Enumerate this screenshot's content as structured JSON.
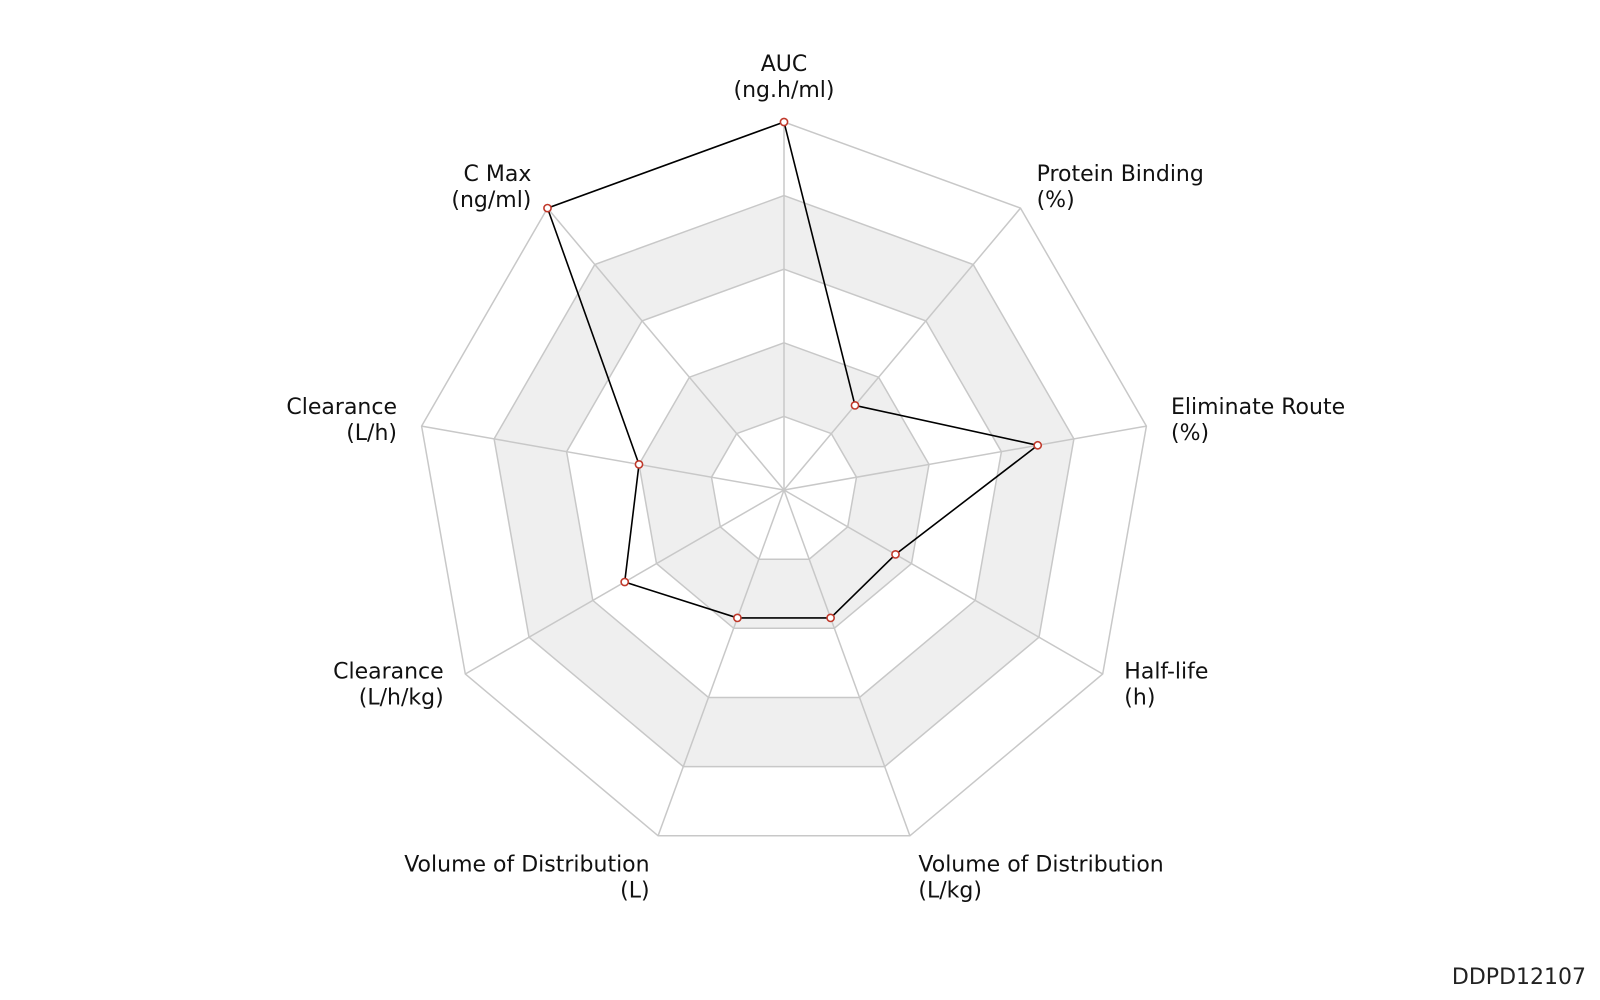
{
  "chart_data": {
    "type": "radar",
    "axes": [
      {
        "name": "AUC",
        "unit": "(ng.h/ml)"
      },
      {
        "name": "Protein Binding",
        "unit": "(%)"
      },
      {
        "name": "Eliminate Route",
        "unit": "(%)"
      },
      {
        "name": "Half-life",
        "unit": "(h)"
      },
      {
        "name": "Volume of Distribution",
        "unit": "(L/kg)"
      },
      {
        "name": "Volume of Distribution",
        "unit": "(L)"
      },
      {
        "name": "Clearance",
        "unit": "(L/h/kg)"
      },
      {
        "name": "Clearance",
        "unit": "(L/h)"
      },
      {
        "name": "C Max",
        "unit": "(ng/ml)"
      }
    ],
    "values": [
      1.0,
      0.3,
      0.7,
      0.35,
      0.37,
      0.37,
      0.5,
      0.4,
      1.0
    ],
    "range": [
      0,
      1
    ],
    "rings": 5,
    "colors": {
      "line": "#000000",
      "marker_stroke": "#c0392b",
      "marker_fill": "#ffffff",
      "band_fill": "#efefef",
      "grid": "#c8c8c8"
    }
  },
  "chart_id": "DDPD12107"
}
